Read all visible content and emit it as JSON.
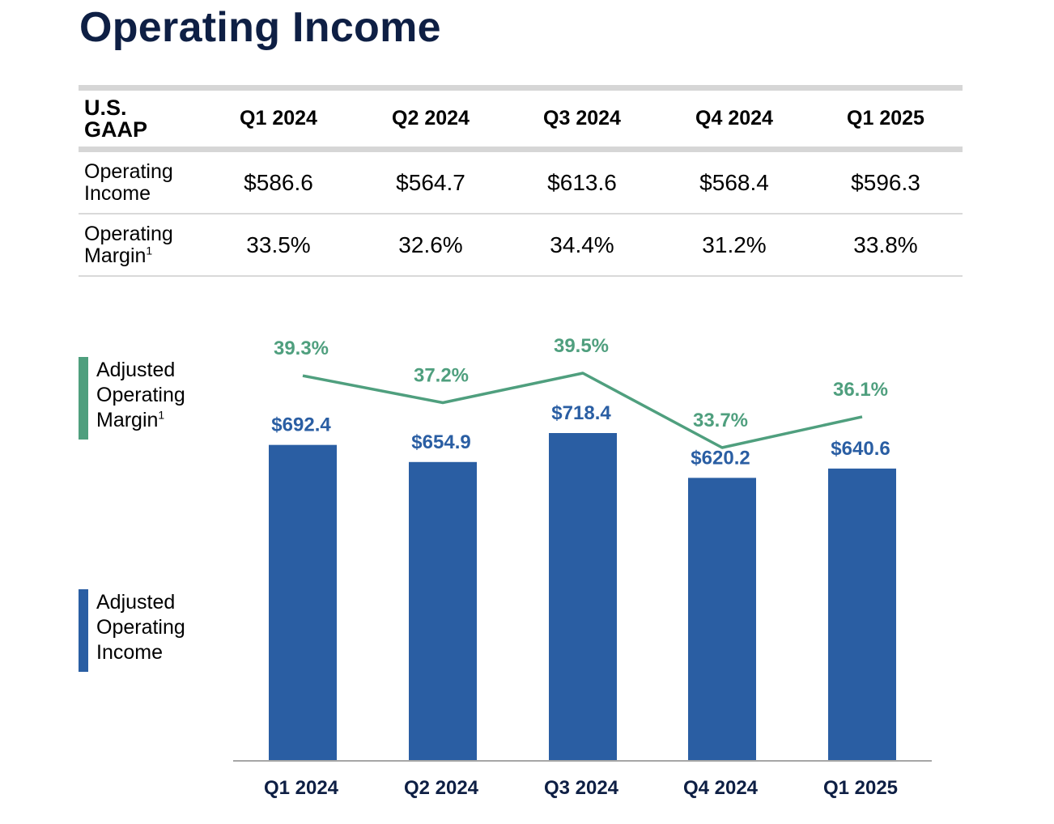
{
  "title": "Operating Income",
  "gaap_table": {
    "corner_label_lines": [
      "U.S.",
      "GAAP"
    ],
    "columns": [
      "Q1 2024",
      "Q2 2024",
      "Q3 2024",
      "Q4 2024",
      "Q1 2025"
    ],
    "rows": [
      {
        "label_lines": [
          "Operating",
          "Income"
        ],
        "footnote": "",
        "values": [
          "$586.6",
          "$564.7",
          "$613.6",
          "$568.4",
          "$596.3"
        ]
      },
      {
        "label_lines": [
          "Operating",
          "Margin"
        ],
        "footnote": "1",
        "values": [
          "33.5%",
          "32.6%",
          "34.4%",
          "31.2%",
          "33.8%"
        ]
      }
    ]
  },
  "legend": {
    "margin": {
      "lines": [
        "Adjusted",
        "Operating",
        "Margin"
      ],
      "footnote": "1"
    },
    "income": {
      "lines": [
        "Adjusted",
        "Operating",
        "Income"
      ]
    }
  },
  "colors": {
    "bar": "#2a5ea3",
    "line": "#4f9f7e",
    "axis": "#a6a6a6",
    "title": "#0e1f44"
  },
  "chart_data": {
    "type": "bar+line",
    "categories": [
      "Q1 2024",
      "Q2 2024",
      "Q3 2024",
      "Q4 2024",
      "Q1 2025"
    ],
    "series": [
      {
        "name": "Adjusted Operating Income",
        "type": "bar",
        "values": [
          692.4,
          654.9,
          718.4,
          620.2,
          640.6
        ],
        "labels": [
          "$692.4",
          "$654.9",
          "$718.4",
          "$620.2",
          "$640.6"
        ]
      },
      {
        "name": "Adjusted Operating Margin",
        "type": "line",
        "values": [
          39.3,
          37.2,
          39.5,
          33.7,
          36.1
        ],
        "labels": [
          "39.3%",
          "37.2%",
          "39.5%",
          "33.7%",
          "36.1%"
        ]
      }
    ],
    "bar_ylim": [
      0,
      724
    ],
    "line_ylim": [
      25,
      41.3
    ],
    "grid": false
  }
}
